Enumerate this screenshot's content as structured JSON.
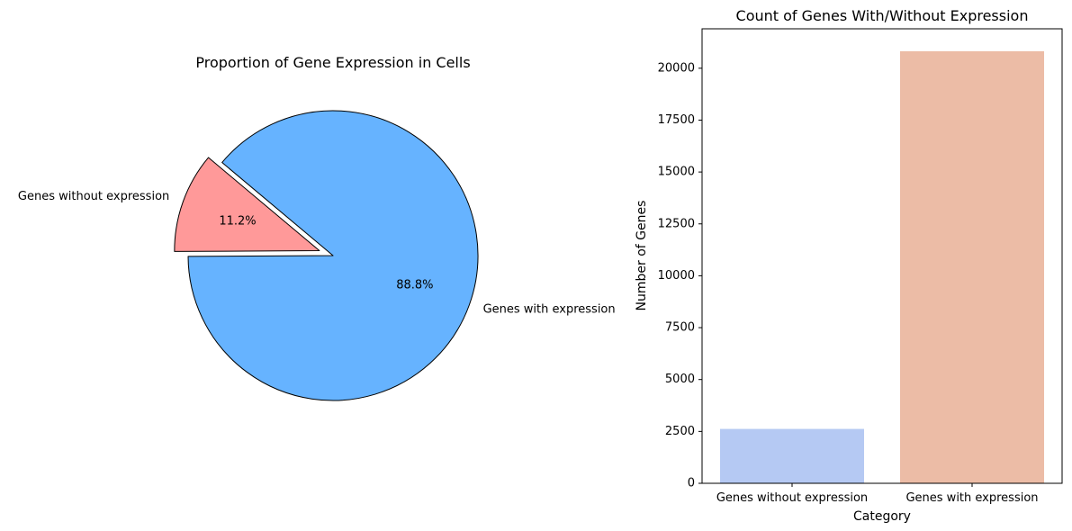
{
  "chart_data": [
    {
      "type": "pie",
      "title": "Proportion of Gene Expression in Cells",
      "slices": [
        {
          "label": "Genes without expression",
          "value": 11.2,
          "pct_label": "11.2%",
          "color": "#ff9999",
          "exploded": true
        },
        {
          "label": "Genes with expression",
          "value": 88.8,
          "pct_label": "88.8%",
          "color": "#66b3ff",
          "exploded": false
        }
      ],
      "start_angle_deg": 140,
      "edge_color": "#000000"
    },
    {
      "type": "bar",
      "title": "Count of Genes With/Without Expression",
      "xlabel": "Category",
      "ylabel": "Number of Genes",
      "categories": [
        "Genes without expression",
        "Genes with expression"
      ],
      "values": [
        2620,
        20820
      ],
      "colors": [
        "#b5c9f3",
        "#ecbca6"
      ],
      "ylim": [
        0,
        21900
      ],
      "yticks": [
        0,
        2500,
        5000,
        7500,
        10000,
        12500,
        15000,
        17500,
        20000
      ],
      "grid": false
    }
  ]
}
